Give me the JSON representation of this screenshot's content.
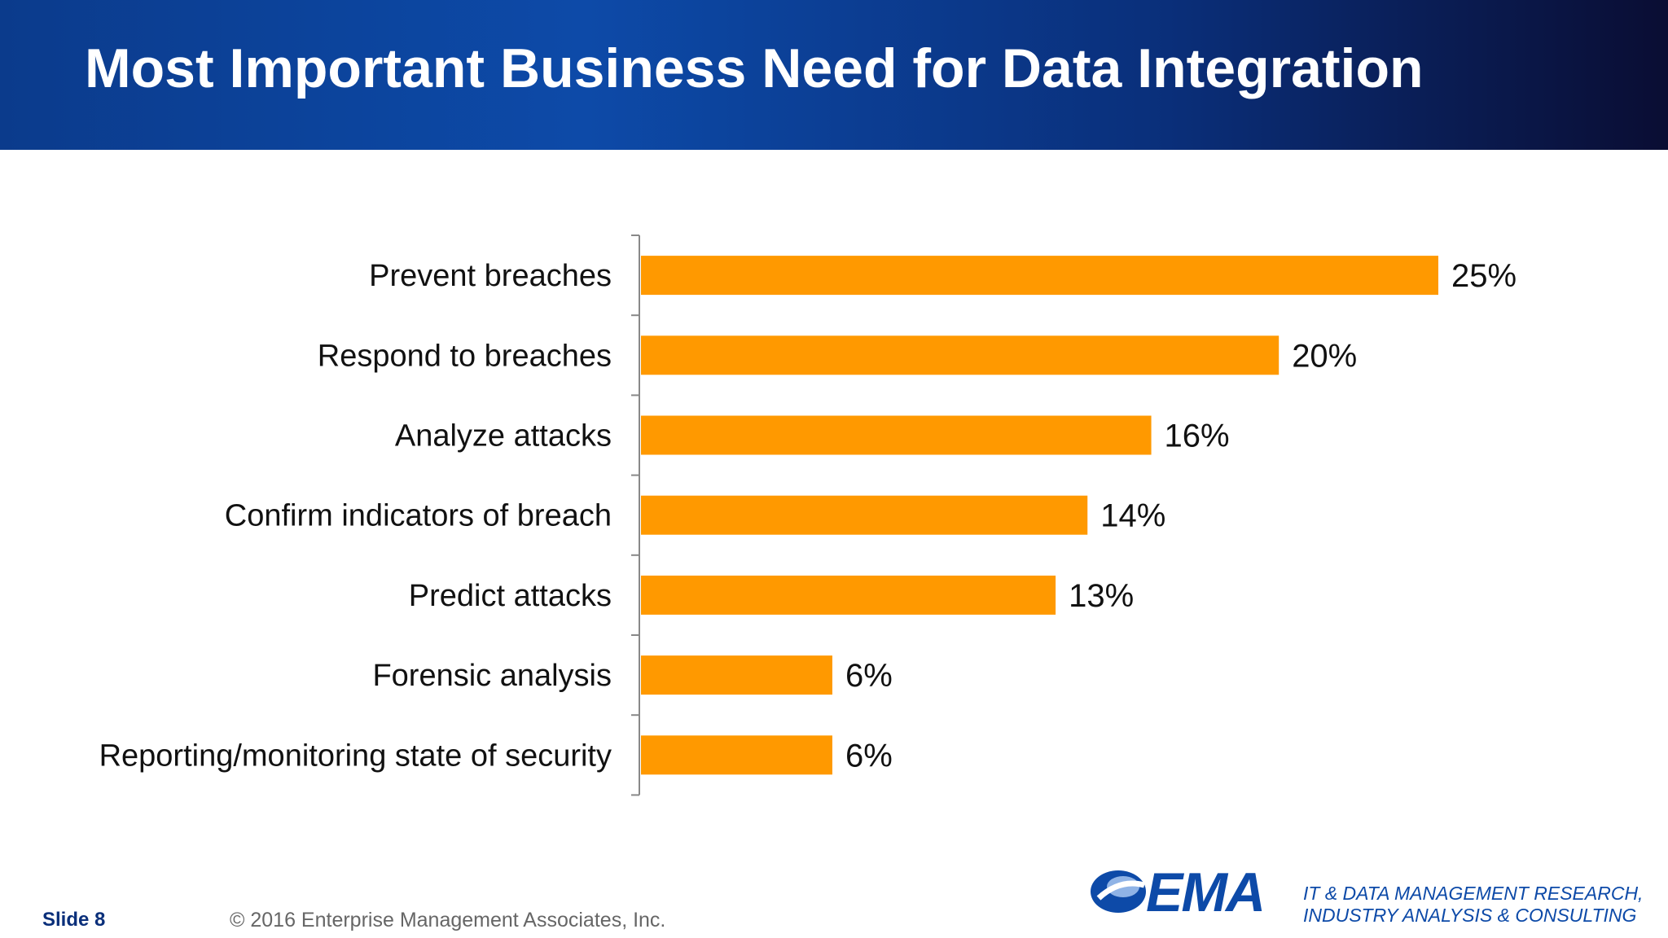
{
  "header": {
    "title": "Most Important Business Need for Data Integration"
  },
  "chart_data": {
    "type": "bar",
    "orientation": "horizontal",
    "categories": [
      "Prevent breaches",
      "Respond to breaches",
      "Analyze attacks",
      "Confirm indicators of breach",
      "Predict attacks",
      "Forensic analysis",
      "Reporting/monitoring state of security"
    ],
    "values": [
      25,
      20,
      16,
      14,
      13,
      6,
      6
    ],
    "value_labels": [
      "25%",
      "20%",
      "16%",
      "14%",
      "13%",
      "6%",
      "6%"
    ],
    "xlim": [
      0,
      25
    ],
    "bar_color": "#ff9900",
    "grid": false,
    "legend": "none"
  },
  "footer": {
    "slide": "Slide 8",
    "copyright": "© 2016 Enterprise Management Associates, Inc.",
    "logo_text": "EMA",
    "tagline_line1": "IT & DATA MANAGEMENT RESEARCH,",
    "tagline_line2": "INDUSTRY ANALYSIS & CONSULTING"
  }
}
